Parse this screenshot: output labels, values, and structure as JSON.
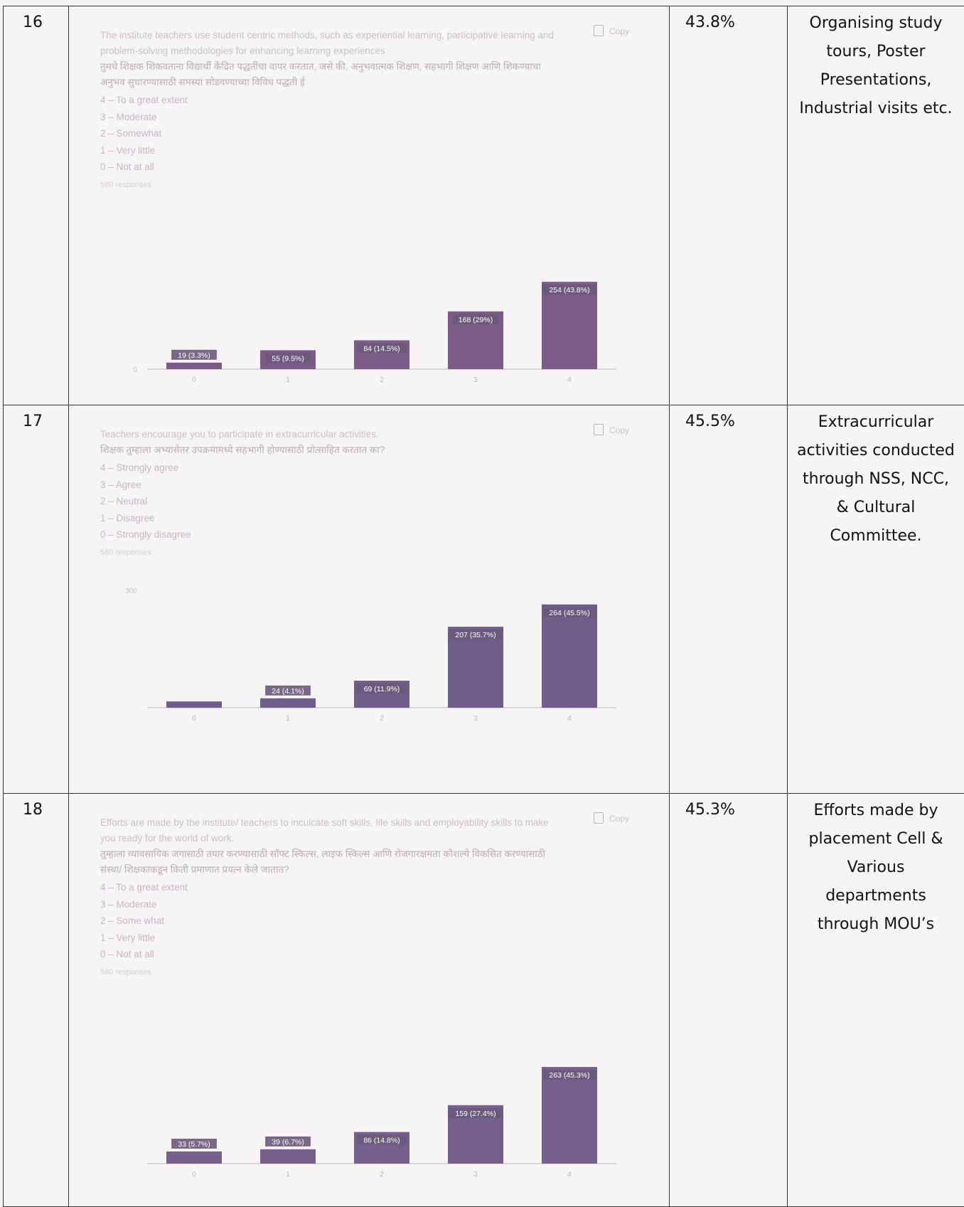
{
  "rows": [
    {
      "sno": "16",
      "question_en": "The institute teachers use student centric methods, such as experiential learning, participative learning and problem-solving methodologies for enhancing learning experiences",
      "question_mr": "तुमचे शिक्षक शिकवताना विद्यार्थी केंद्रित पद्धतींचा वापर करतात, जसे की, अनुभवात्मक शिक्षण, सहभागी शिक्षण आणि शिकण्याचा अनुभव सुधारण्यासाठी समस्या सोडवण्याच्या विविध पद्धती ई",
      "options": [
        "4 – To a great extent",
        "3 – Moderate",
        "2 – Somewhat",
        "1 – Very little",
        "0 – Not at all"
      ],
      "responses": "580 responses",
      "copy_label": "Copy",
      "percentage": "43.8%",
      "action": "Organising study tours, Poster Presentations, Industrial visits etc."
    },
    {
      "sno": "17",
      "question_en": "Teachers encourage you to participate in extracurricular activities.",
      "question_mr": "शिक्षक तुम्हाला अभ्यासेतर उपक्रमामध्ये सहभागी होण्यासाठी प्रोत्साहित करतात का?",
      "options": [
        "4 – Strongly agree",
        "3 – Agree",
        "2 – Neutral",
        "1 – Disagree",
        "0 – Strongly disagree"
      ],
      "responses": "580 responses",
      "copy_label": "Copy",
      "percentage": "45.5%",
      "action": "Extracurricular activities conducted through NSS, NCC, & Cultural Committee."
    },
    {
      "sno": "18",
      "question_en": "Efforts are made by the institute/ teachers to inculcate soft skills, life skills and employability skills to make you ready for the world of work.",
      "question_mr": "तुम्हाला व्यावसायिक जगासाठी तयार करण्यासाठी सॉफ्ट स्किल्स, लाइफ स्किल्स आणि रोजगारक्षमता कौशल्ये विकसित करण्यासाठी संस्था/ शिक्षकाकडून किती प्रमाणात प्रयत्न केले जातात?",
      "options": [
        "4 – To a great extent",
        "3 – Moderate",
        "2 – Some what",
        "1 – Very little",
        "0 – Not at all"
      ],
      "responses": "580 responses",
      "copy_label": "Copy",
      "percentage": "45.3%",
      "action": "Efforts made by placement Cell & Various departments through MOU’s"
    }
  ],
  "chart_data": [
    {
      "type": "bar",
      "categories": [
        "0",
        "1",
        "2",
        "3",
        "4"
      ],
      "values": [
        19,
        55,
        84,
        168,
        254
      ],
      "labels": [
        "19 (3.3%)",
        "55 (9.5%)",
        "84 (14.5%)",
        "168 (29%)",
        "254 (43.8%)"
      ],
      "y_ticks": [
        "0"
      ],
      "ylim": [
        0,
        300
      ],
      "bar_color": "#7a5c86",
      "grid": false
    },
    {
      "type": "bar",
      "categories": [
        "0",
        "1",
        "2",
        "3",
        "4"
      ],
      "values": [
        16,
        24,
        69,
        207,
        264
      ],
      "labels": [
        "",
        "24 (4.1%)",
        "69 (11.9%)",
        "207 (35.7%)",
        "264 (45.5%)"
      ],
      "y_ticks": [
        "300"
      ],
      "ylim": [
        0,
        300
      ],
      "bar_color": "#6f5e8a",
      "grid": false
    },
    {
      "type": "bar",
      "categories": [
        "0",
        "1",
        "2",
        "3",
        "4"
      ],
      "values": [
        33,
        39,
        86,
        159,
        263
      ],
      "labels": [
        "33 (5.7%)",
        "39 (6.7%)",
        "86 (14.8%)",
        "159 (27.4%)",
        "263 (45.3%)"
      ],
      "y_ticks": [],
      "ylim": [
        0,
        300
      ],
      "bar_color": "#75608c",
      "grid": false
    }
  ]
}
